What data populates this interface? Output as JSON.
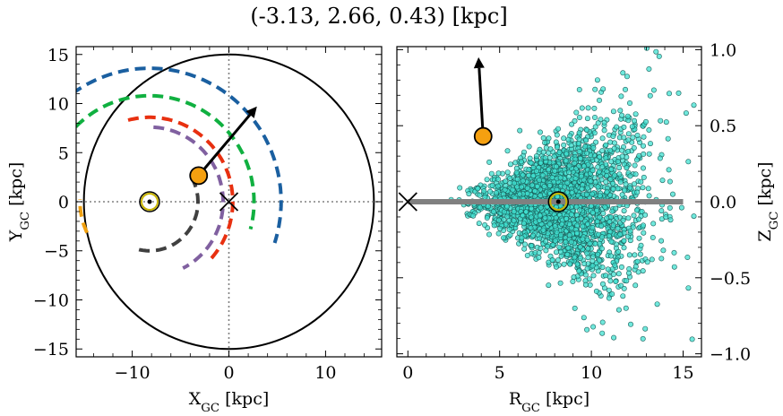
{
  "figure_title": "(-3.13, 2.66, 0.43) [kpc]",
  "chart_data": [
    {
      "type": "scatter",
      "panel": "left",
      "xlabel": "X",
      "xlabel_sub": "GC",
      "xlabel_unit": " [kpc]",
      "ylabel": "Y",
      "ylabel_sub": "GC",
      "ylabel_unit": " [kpc]",
      "xlim": [
        -15.8,
        15.8
      ],
      "ylim": [
        -15.8,
        15.8
      ],
      "xticks": [
        -10,
        0,
        10
      ],
      "yticks": [
        -15,
        -10,
        -5,
        0,
        5,
        10,
        15
      ],
      "tick_labels_x": [
        "−10",
        "0",
        "10"
      ],
      "tick_labels_y": [
        "−15",
        "−10",
        "−5",
        "0",
        "5",
        "10",
        "15"
      ],
      "boundary_circle_radius": 15,
      "crosshair_lines": "dotted at x=0 and y=0",
      "galactic_center": [
        0,
        0
      ],
      "sun": [
        -8.2,
        0
      ],
      "object": [
        -3.13,
        2.66
      ],
      "velocity_arrow_end": [
        2.9,
        9.7
      ],
      "spiral_arms": [
        {
          "color": "#1a5fa0",
          "radius": 13.6,
          "theta_start": 168,
          "theta_end": 19
        },
        {
          "color": "#10b040",
          "radius": 10.8,
          "theta_start": 225,
          "theta_end": 15
        },
        {
          "color": "#f0a010",
          "radius": 7.2,
          "theta_start": 154,
          "theta_end": 182
        },
        {
          "color": "#e83010",
          "radius": 8.6,
          "theta_start": 255,
          "theta_end": 43
        },
        {
          "color": "#8060a0",
          "radius": 7.6,
          "theta_start": 273,
          "theta_end": 64
        },
        {
          "color": "#404040",
          "radius": 5.0,
          "theta_start": 330,
          "theta_end": 110
        }
      ]
    },
    {
      "type": "scatter",
      "panel": "right",
      "xlabel": "R",
      "xlabel_sub": "GC",
      "xlabel_unit": " [kpc]",
      "ylabel": "Z",
      "ylabel_sub": "GC",
      "ylabel_unit": " [kpc]",
      "xlim": [
        -0.6,
        16.0
      ],
      "ylim": [
        -1.02,
        1.02
      ],
      "xticks": [
        0,
        5,
        10,
        15
      ],
      "yticks": [
        -1.0,
        -0.5,
        0.0,
        0.5,
        1.0
      ],
      "tick_labels_x": [
        "0",
        "5",
        "10",
        "15"
      ],
      "tick_labels_y": [
        "−1.0",
        "−0.5",
        "0.0",
        "0.5",
        "1.0"
      ],
      "disk_line": {
        "x": [
          0,
          15
        ],
        "z": 0,
        "color": "#808080"
      },
      "galactic_center": [
        0,
        0
      ],
      "sun": [
        8.2,
        0
      ],
      "object": [
        4.1,
        0.43
      ],
      "velocity_arrow_end": [
        3.85,
        0.95
      ],
      "point_color": "#40e0d0",
      "point_edge": "#1a5f5a",
      "cloud_description_points_approx": 2500,
      "cloud": {
        "count": 2500,
        "center_r": 8.3,
        "sigma_r_inner": 1.9,
        "sigma_r_outer": 2.5,
        "z_scale_at_r": [
          [
            2,
            0.05
          ],
          [
            5,
            0.1
          ],
          [
            8,
            0.18
          ],
          [
            11,
            0.32
          ],
          [
            14,
            0.5
          ]
        ]
      }
    }
  ],
  "colors": {
    "object_fill": "#f5a010",
    "sun_ring": "#c8b400",
    "arrow": "#000000"
  }
}
